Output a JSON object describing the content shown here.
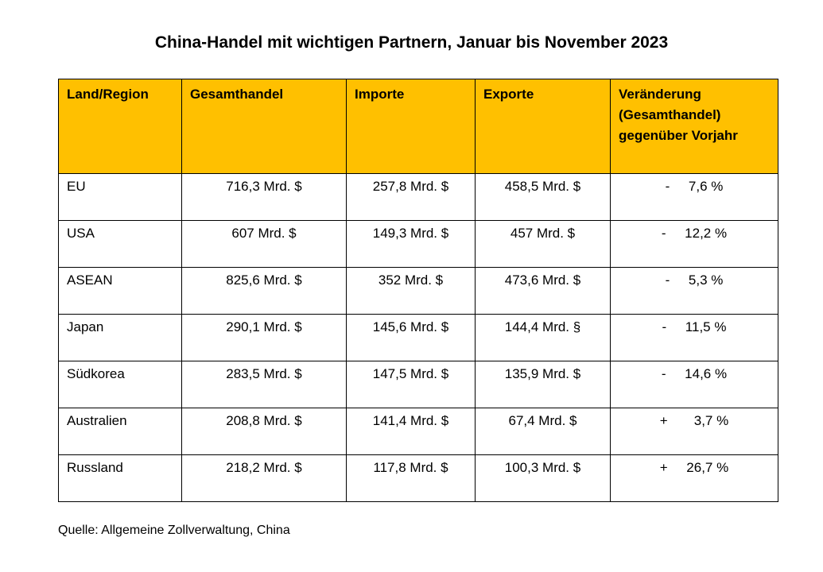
{
  "title": "China-Handel mit wichtigen Partnern, Januar bis November 2023",
  "table": {
    "headers": [
      "Land/Region",
      "Gesamthandel",
      "Importe",
      "Exporte",
      "Veränderung (Gesamthandel) gegenüber Vorjahr"
    ],
    "rows": [
      [
        "EU",
        "716,3 Mrd. $",
        "257,8 Mrd. $",
        "458,5 Mrd. $",
        "-     7,6 %"
      ],
      [
        "USA",
        "607 Mrd. $",
        "149,3 Mrd. $",
        "457 Mrd. $",
        "-     12,2 %"
      ],
      [
        "ASEAN",
        "825,6 Mrd. $",
        "352 Mrd. $",
        "473,6 Mrd. $",
        "-     5,3 %"
      ],
      [
        "Japan",
        "290,1 Mrd. $",
        "145,6 Mrd. $",
        "144,4 Mrd. §",
        "-     11,5 %"
      ],
      [
        "Südkorea",
        "283,5 Mrd. $",
        "147,5 Mrd. $",
        "135,9 Mrd. $",
        "-     14,6 %"
      ],
      [
        "Australien",
        "208,8 Mrd. $",
        "141,4 Mrd. $",
        "67,4 Mrd. $",
        "+       3,7 %"
      ],
      [
        "Russland",
        "218,2 Mrd. $",
        "117,8 Mrd. $",
        "100,3 Mrd. $",
        "+     26,7 %"
      ]
    ]
  },
  "source": "Quelle: Allgemeine Zollverwaltung, China"
}
